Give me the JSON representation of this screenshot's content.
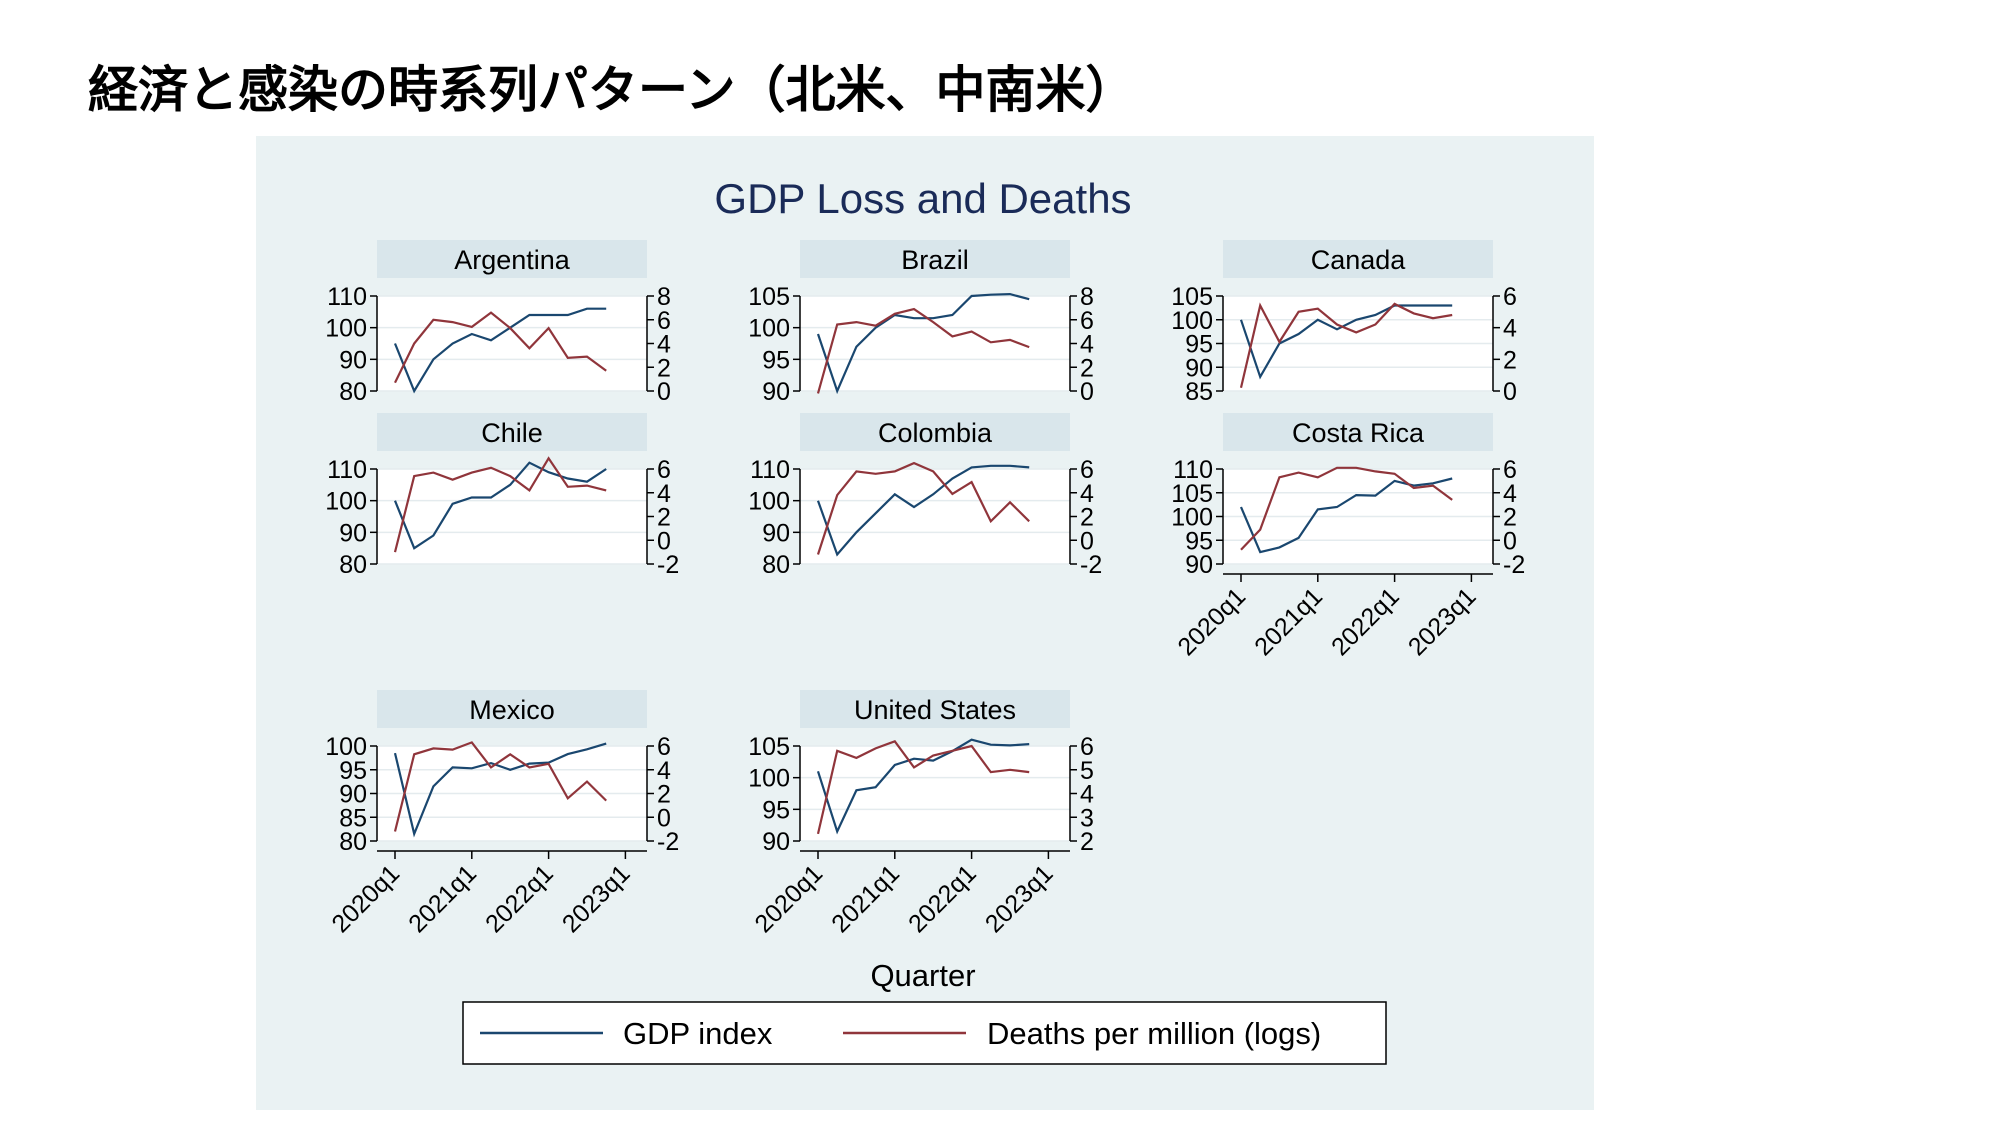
{
  "slide": {
    "title": "経済と感染の時系列パターン（北米、中南米）"
  },
  "colors": {
    "gdp": "#1a476f",
    "deaths": "#90353b",
    "panel_bg": "#eaf2f3",
    "header_bg": "#d9e6eb",
    "title": "#1a2b58"
  },
  "chart_data": {
    "type": "line",
    "title": "GDP Loss and Deaths",
    "xlabel": "Quarter",
    "x": [
      "2020q1",
      "2020q2",
      "2020q3",
      "2020q4",
      "2021q1",
      "2021q2",
      "2021q3",
      "2021q4",
      "2022q1",
      "2022q2",
      "2022q3",
      "2022q4"
    ],
    "x_ticks": [
      "2020q1",
      "2021q1",
      "2022q1",
      "2023q1"
    ],
    "legend": [
      "GDP index",
      "Deaths per million (logs)"
    ],
    "legend_position": "bottom",
    "grid": true,
    "panels": [
      {
        "name": "Argentina",
        "y_left": {
          "range": [
            80,
            110
          ],
          "ticks": [
            "80",
            "90",
            "100",
            "110"
          ]
        },
        "y_right": {
          "range": [
            0,
            8
          ],
          "ticks": [
            "0",
            "2",
            "4",
            "6",
            "8"
          ]
        },
        "gdp": [
          95,
          80,
          90,
          95,
          98,
          96,
          100,
          104,
          104,
          104,
          106,
          106
        ],
        "deaths": [
          0.7,
          4.0,
          6.0,
          5.8,
          5.4,
          6.6,
          5.3,
          3.6,
          5.3,
          2.8,
          2.9,
          1.7
        ]
      },
      {
        "name": "Brazil",
        "y_left": {
          "range": [
            90,
            105
          ],
          "ticks": [
            "90",
            "95",
            "100",
            "105"
          ]
        },
        "y_right": {
          "range": [
            0,
            8
          ],
          "ticks": [
            "0",
            "2",
            "4",
            "6",
            "8"
          ]
        },
        "gdp": [
          99,
          90,
          97,
          100,
          102,
          101.5,
          101.5,
          102,
          105,
          105.2,
          105.3,
          104.5
        ],
        "deaths": [
          -0.2,
          5.6,
          5.8,
          5.5,
          6.5,
          6.9,
          5.8,
          4.6,
          5.0,
          4.1,
          4.3,
          3.7
        ]
      },
      {
        "name": "Canada",
        "y_left": {
          "range": [
            85,
            105
          ],
          "ticks": [
            "85",
            "90",
            "95",
            "100",
            "105"
          ]
        },
        "y_right": {
          "range": [
            0,
            6
          ],
          "ticks": [
            "0",
            "2",
            "4",
            "6"
          ]
        },
        "gdp": [
          100,
          88,
          95,
          97,
          100,
          98,
          100,
          101,
          103,
          103,
          103,
          103
        ],
        "deaths": [
          0.2,
          5.4,
          3.1,
          5.0,
          5.2,
          4.2,
          3.7,
          4.2,
          5.5,
          4.9,
          4.6,
          4.8
        ]
      },
      {
        "name": "Chile",
        "y_left": {
          "range": [
            80,
            110
          ],
          "ticks": [
            "80",
            "90",
            "100",
            "110"
          ]
        },
        "y_right": {
          "range": [
            -2,
            6
          ],
          "ticks": [
            "-2",
            "0",
            "2",
            "4",
            "6"
          ]
        },
        "gdp": [
          100,
          85,
          89,
          99,
          101,
          101,
          105,
          112,
          109,
          107,
          106,
          110
        ],
        "deaths": [
          -1.0,
          5.4,
          5.7,
          5.1,
          5.7,
          6.1,
          5.4,
          4.2,
          6.9,
          4.5,
          4.6,
          4.2
        ]
      },
      {
        "name": "Colombia",
        "y_left": {
          "range": [
            80,
            110
          ],
          "ticks": [
            "80",
            "90",
            "100",
            "110"
          ]
        },
        "y_right": {
          "range": [
            -2,
            6
          ],
          "ticks": [
            "-2",
            "0",
            "2",
            "4",
            "6"
          ]
        },
        "gdp": [
          100,
          83,
          90,
          96,
          102,
          98,
          102,
          107,
          110.5,
          111,
          111,
          110.5
        ],
        "deaths": [
          -1.2,
          3.8,
          5.8,
          5.6,
          5.8,
          6.5,
          5.8,
          3.9,
          4.9,
          1.6,
          3.2,
          1.6
        ]
      },
      {
        "name": "Costa Rica",
        "y_left": {
          "range": [
            90,
            110
          ],
          "ticks": [
            "90",
            "95",
            "100",
            "105",
            "110"
          ]
        },
        "y_right": {
          "range": [
            -2,
            6
          ],
          "ticks": [
            "-2",
            "0",
            "2",
            "4",
            "6"
          ]
        },
        "gdp": [
          102,
          92.5,
          93.5,
          95.5,
          101.5,
          102,
          104.5,
          104.4,
          107.5,
          106.5,
          107,
          108
        ],
        "deaths": [
          -0.8,
          0.9,
          5.3,
          5.7,
          5.3,
          6.1,
          6.1,
          5.8,
          5.6,
          4.4,
          4.6,
          3.4
        ]
      },
      {
        "name": "Mexico",
        "y_left": {
          "range": [
            80,
            100
          ],
          "ticks": [
            "80",
            "85",
            "90",
            "95",
            "100"
          ]
        },
        "y_right": {
          "range": [
            -2,
            6
          ],
          "ticks": [
            "-2",
            "0",
            "2",
            "4",
            "6"
          ]
        },
        "gdp": [
          98.5,
          81.5,
          91.5,
          95.5,
          95.3,
          96.4,
          95,
          96.3,
          96.5,
          98.3,
          99.3,
          100.5
        ],
        "deaths": [
          -1.2,
          5.3,
          5.8,
          5.7,
          6.3,
          4.2,
          5.3,
          4.2,
          4.5,
          1.6,
          3.0,
          1.4
        ]
      },
      {
        "name": "United States",
        "y_left": {
          "range": [
            90,
            105
          ],
          "ticks": [
            "90",
            "95",
            "100",
            "105"
          ]
        },
        "y_right": {
          "range": [
            2,
            6
          ],
          "ticks": [
            "2",
            "3",
            "4",
            "5",
            "6"
          ]
        },
        "gdp": [
          101,
          91.5,
          98,
          98.5,
          102,
          103,
          102.7,
          104.2,
          106,
          105.2,
          105.1,
          105.3
        ],
        "deaths": [
          2.3,
          5.8,
          5.5,
          5.9,
          6.2,
          5.1,
          5.6,
          5.8,
          6.0,
          4.9,
          5.0,
          4.9
        ]
      }
    ]
  }
}
